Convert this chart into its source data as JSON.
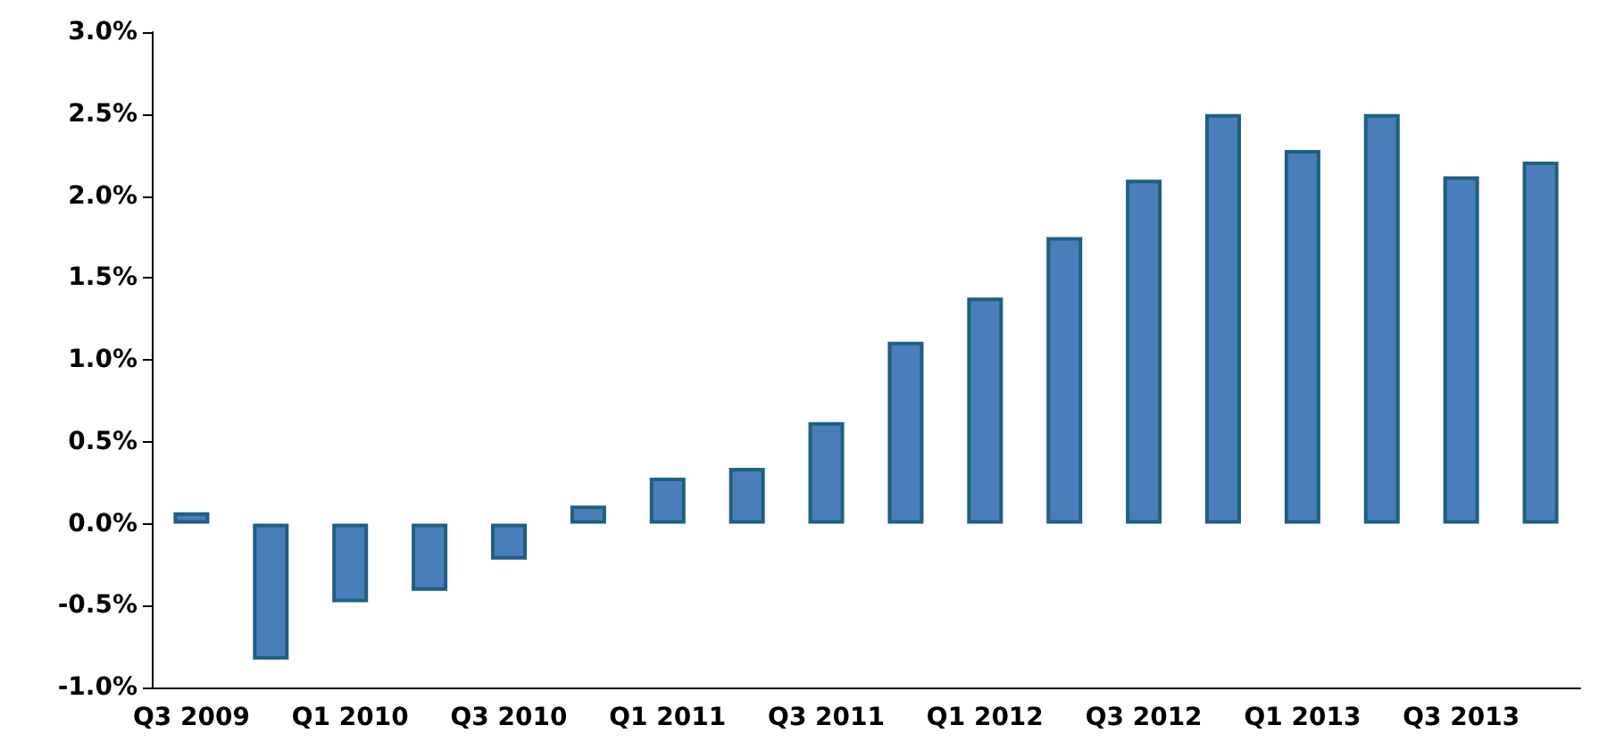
{
  "chart_data": {
    "type": "bar",
    "categories": [
      "Q3 2009",
      null,
      "Q1 2010",
      null,
      "Q3 2010",
      null,
      "Q1 2011",
      null,
      "Q3 2011",
      null,
      "Q1 2012",
      null,
      "Q3 2012",
      null,
      "Q1 2013",
      null,
      "Q3 2013",
      null
    ],
    "values": [
      0.07,
      -0.83,
      -0.48,
      -0.41,
      -0.22,
      0.11,
      0.28,
      0.34,
      0.62,
      1.11,
      1.38,
      1.75,
      2.1,
      2.5,
      2.28,
      2.5,
      2.12,
      2.21
    ],
    "color": "#4a7ebb",
    "ylim": [
      -1.0,
      3.0
    ],
    "yticks": [
      {
        "value": -1.0,
        "label": "-1.0%"
      },
      {
        "value": -0.5,
        "label": "-0.5%"
      },
      {
        "value": 0,
        "label": "0.0%"
      },
      {
        "value": 0.5,
        "label": "0.5%"
      },
      {
        "value": 1.0,
        "label": "1.0%"
      },
      {
        "value": 1.5,
        "label": "1.5%"
      },
      {
        "value": 2.0,
        "label": "2.0%"
      },
      {
        "value": 2.5,
        "label": "2.5%"
      },
      {
        "value": 3.0,
        "label": "3.0%"
      }
    ],
    "grid": false
  }
}
